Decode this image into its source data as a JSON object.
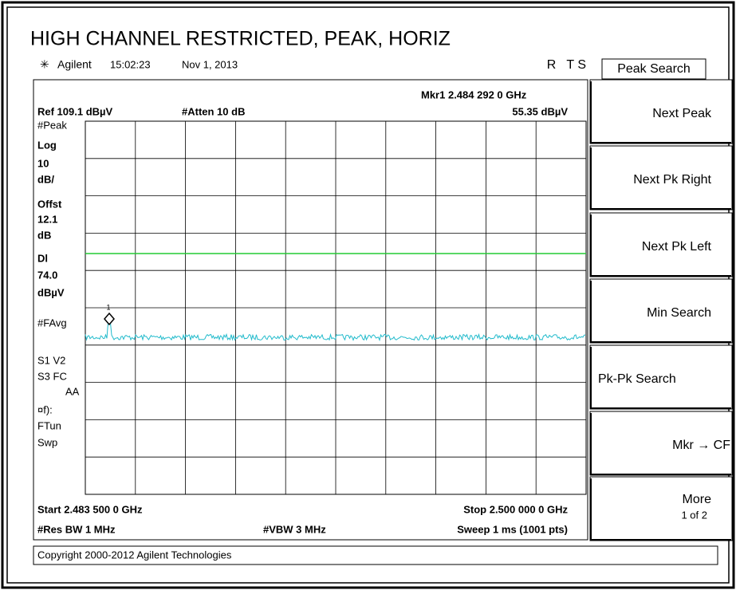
{
  "title": "HIGH CHANNEL RESTRICTED, PEAK, HORIZ",
  "status": {
    "brand": "Agilent",
    "time": "15:02:23",
    "date": "Nov 1, 2013",
    "flags": "R   T S"
  },
  "marker": {
    "label": "Mkr1 2.484 292 0 GHz",
    "amplitude": "55.35 dBµV",
    "number": "1"
  },
  "settings": {
    "ref": "Ref 109.1 dBµV",
    "atten": "#Atten 10 dB"
  },
  "left_labels": [
    "#Peak",
    "Log",
    "10",
    "dB/",
    "Offst",
    "12.1",
    "dB",
    "Dl",
    "74.0",
    "dBµV",
    "#FAvg",
    "S1  V2",
    "S3  FC",
    "AA",
    "¤f):",
    "FTun",
    "Swp"
  ],
  "footer": {
    "start": "Start 2.483 500 0 GHz",
    "stop": "Stop 2.500 000 0 GHz",
    "rbw": "#Res BW 1 MHz",
    "vbw": "#VBW 3 MHz",
    "sweep": "Sweep 1 ms (1001 pts)"
  },
  "menu_title": "Peak Search",
  "softkeys": [
    {
      "label": "Next Peak"
    },
    {
      "label": "Next Pk Right"
    },
    {
      "label": "Next Pk Left"
    },
    {
      "label": "Min Search"
    },
    {
      "label": "Pk-Pk Search"
    },
    {
      "label": "Mkr → CF"
    },
    {
      "label": "More",
      "sub": "1 of 2"
    }
  ],
  "copyright": "Copyright 2000-2012 Agilent Technologies"
}
